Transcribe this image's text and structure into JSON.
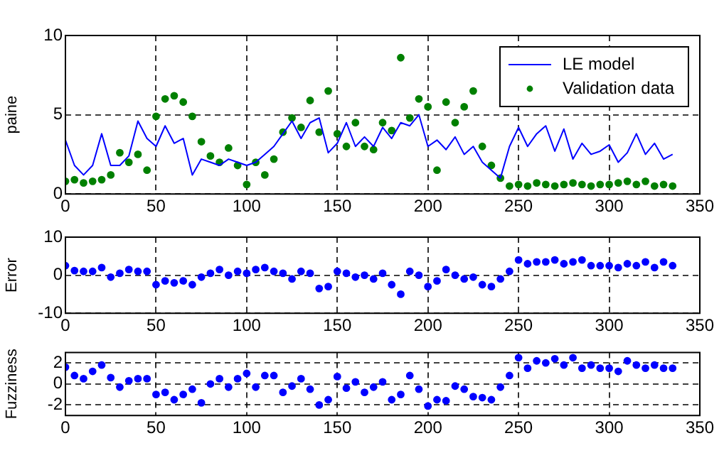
{
  "chart_data": [
    {
      "type": "line",
      "ylabel": "paine",
      "xlim": [
        0,
        350
      ],
      "xticks": [
        0,
        50,
        100,
        150,
        200,
        250,
        300,
        350
      ],
      "ylim": [
        0,
        10
      ],
      "yticks": [
        0,
        5,
        10
      ],
      "grid": true,
      "legend": "top right",
      "x": [
        0,
        5,
        10,
        15,
        20,
        25,
        30,
        35,
        40,
        45,
        50,
        55,
        60,
        65,
        70,
        75,
        80,
        85,
        90,
        95,
        100,
        105,
        110,
        115,
        120,
        125,
        130,
        135,
        140,
        145,
        150,
        155,
        160,
        165,
        170,
        175,
        180,
        185,
        190,
        195,
        200,
        205,
        210,
        215,
        220,
        225,
        230,
        235,
        240,
        245,
        250,
        255,
        260,
        265,
        270,
        275,
        280,
        285,
        290,
        295,
        300,
        305,
        310,
        315,
        320,
        325,
        330,
        335
      ],
      "series": [
        {
          "name": "LE model",
          "color": "#0000ff",
          "line_style": "solid",
          "values": [
            3.4,
            1.8,
            1.2,
            1.8,
            3.8,
            1.8,
            1.8,
            2.4,
            4.6,
            3.5,
            3.0,
            4.3,
            3.2,
            3.5,
            1.2,
            2.2,
            2.0,
            1.8,
            2.2,
            2.0,
            1.8,
            2.0,
            2.5,
            3.0,
            3.8,
            4.6,
            3.5,
            4.5,
            4.8,
            2.6,
            3.2,
            4.5,
            3.0,
            3.6,
            3.0,
            4.2,
            3.5,
            4.5,
            4.3,
            5.0,
            3.0,
            3.4,
            2.8,
            3.6,
            2.5,
            3.0,
            2.0,
            1.5,
            1.0,
            3.0,
            4.2,
            3.0,
            3.8,
            4.3,
            2.7,
            4.1,
            2.2,
            3.2,
            2.5,
            2.7,
            3.1,
            2.0,
            2.6,
            3.8,
            2.5,
            3.2,
            2.2,
            2.5
          ]
        },
        {
          "name": "Validation data",
          "type": "scatter",
          "color": "#008000",
          "marker": "circle",
          "values": [
            0.8,
            0.9,
            0.7,
            0.8,
            0.9,
            1.2,
            2.6,
            2.0,
            2.5,
            1.5,
            4.9,
            6.0,
            6.2,
            5.8,
            4.9,
            3.3,
            2.4,
            2.0,
            2.9,
            1.8,
            0.6,
            2.0,
            1.2,
            2.2,
            3.9,
            4.8,
            4.2,
            5.9,
            3.9,
            6.5,
            3.8,
            3.0,
            4.5,
            3.0,
            2.8,
            4.5,
            4.0,
            8.6,
            4.8,
            6.0,
            5.5,
            1.5,
            5.8,
            4.5,
            5.5,
            6.5,
            3.0,
            1.8,
            1.0,
            0.5,
            0.6,
            0.5,
            0.7,
            0.6,
            0.5,
            0.6,
            0.7,
            0.6,
            0.5,
            0.6,
            0.6,
            0.7,
            0.8,
            0.6,
            0.8,
            0.5,
            0.6,
            0.5
          ]
        }
      ]
    },
    {
      "type": "scatter",
      "ylabel": "Error",
      "xlim": [
        0,
        350
      ],
      "xticks": [
        0,
        50,
        100,
        150,
        200,
        250,
        300,
        350
      ],
      "ylim": [
        -10,
        10
      ],
      "yticks": [
        -10,
        0,
        10
      ],
      "grid": true,
      "color": "#0000ff",
      "marker": "circle",
      "x": [
        0,
        5,
        10,
        15,
        20,
        25,
        30,
        35,
        40,
        45,
        50,
        55,
        60,
        65,
        70,
        75,
        80,
        85,
        90,
        95,
        100,
        105,
        110,
        115,
        120,
        125,
        130,
        135,
        140,
        145,
        150,
        155,
        160,
        165,
        170,
        175,
        180,
        185,
        190,
        195,
        200,
        205,
        210,
        215,
        220,
        225,
        230,
        235,
        240,
        245,
        250,
        255,
        260,
        265,
        270,
        275,
        280,
        285,
        290,
        295,
        300,
        305,
        310,
        315,
        320,
        325,
        330,
        335
      ],
      "values": [
        2.5,
        1.2,
        1.0,
        1.0,
        2.0,
        -0.5,
        0.5,
        1.5,
        1.0,
        1.0,
        -2.5,
        -1.5,
        -2.0,
        -1.5,
        -2.5,
        -0.5,
        0.5,
        1.5,
        0.0,
        1.0,
        0.5,
        1.5,
        2.0,
        1.0,
        0.5,
        -1.0,
        1.0,
        0.5,
        -3.5,
        -3.0,
        1.0,
        0.5,
        -0.5,
        0.0,
        -1.0,
        0.5,
        -2.5,
        -5.0,
        1.0,
        0.0,
        -3.0,
        -1.5,
        1.5,
        0.0,
        -1.0,
        -0.5,
        -2.5,
        -3.0,
        -1.0,
        1.0,
        4.0,
        3.0,
        3.5,
        3.5,
        4.0,
        3.0,
        3.5,
        4.0,
        2.5,
        2.5,
        2.5,
        2.0,
        3.0,
        2.5,
        3.5,
        2.0,
        3.5,
        2.5
      ]
    },
    {
      "type": "scatter",
      "ylabel": "Fuzziness",
      "xlim": [
        0,
        350
      ],
      "xticks": [
        0,
        50,
        100,
        150,
        200,
        250,
        300,
        350
      ],
      "ylim": [
        -3,
        3
      ],
      "yticks": [
        -2,
        0,
        2
      ],
      "grid": true,
      "color": "#0000ff",
      "marker": "circle",
      "x": [
        0,
        5,
        10,
        15,
        20,
        25,
        30,
        35,
        40,
        45,
        50,
        55,
        60,
        65,
        70,
        75,
        80,
        85,
        90,
        95,
        100,
        105,
        110,
        115,
        120,
        125,
        130,
        135,
        140,
        145,
        150,
        155,
        160,
        165,
        170,
        175,
        180,
        185,
        190,
        195,
        200,
        205,
        210,
        215,
        220,
        225,
        230,
        235,
        240,
        245,
        250,
        255,
        260,
        265,
        270,
        275,
        280,
        285,
        290,
        295,
        300,
        305,
        310,
        315,
        320,
        325,
        330,
        335
      ],
      "values": [
        1.6,
        0.8,
        0.5,
        1.2,
        1.8,
        0.6,
        -0.3,
        0.3,
        0.5,
        0.5,
        -1.0,
        -0.8,
        -1.5,
        -1.0,
        -0.5,
        -1.8,
        0.0,
        0.5,
        -0.3,
        0.5,
        1.0,
        -0.3,
        0.8,
        0.8,
        -0.8,
        -0.2,
        0.5,
        -0.5,
        -2.0,
        -1.5,
        0.7,
        -0.4,
        0.2,
        -0.8,
        -0.3,
        0.2,
        -1.5,
        -1.0,
        0.8,
        -0.5,
        -2.1,
        -1.5,
        -1.6,
        -0.2,
        -0.5,
        -1.2,
        -1.3,
        -1.5,
        -0.3,
        0.8,
        2.5,
        1.5,
        2.2,
        2.0,
        2.4,
        1.8,
        2.5,
        1.5,
        1.8,
        1.5,
        1.5,
        1.2,
        2.2,
        1.8,
        1.5,
        1.8,
        1.5,
        1.5
      ]
    }
  ]
}
